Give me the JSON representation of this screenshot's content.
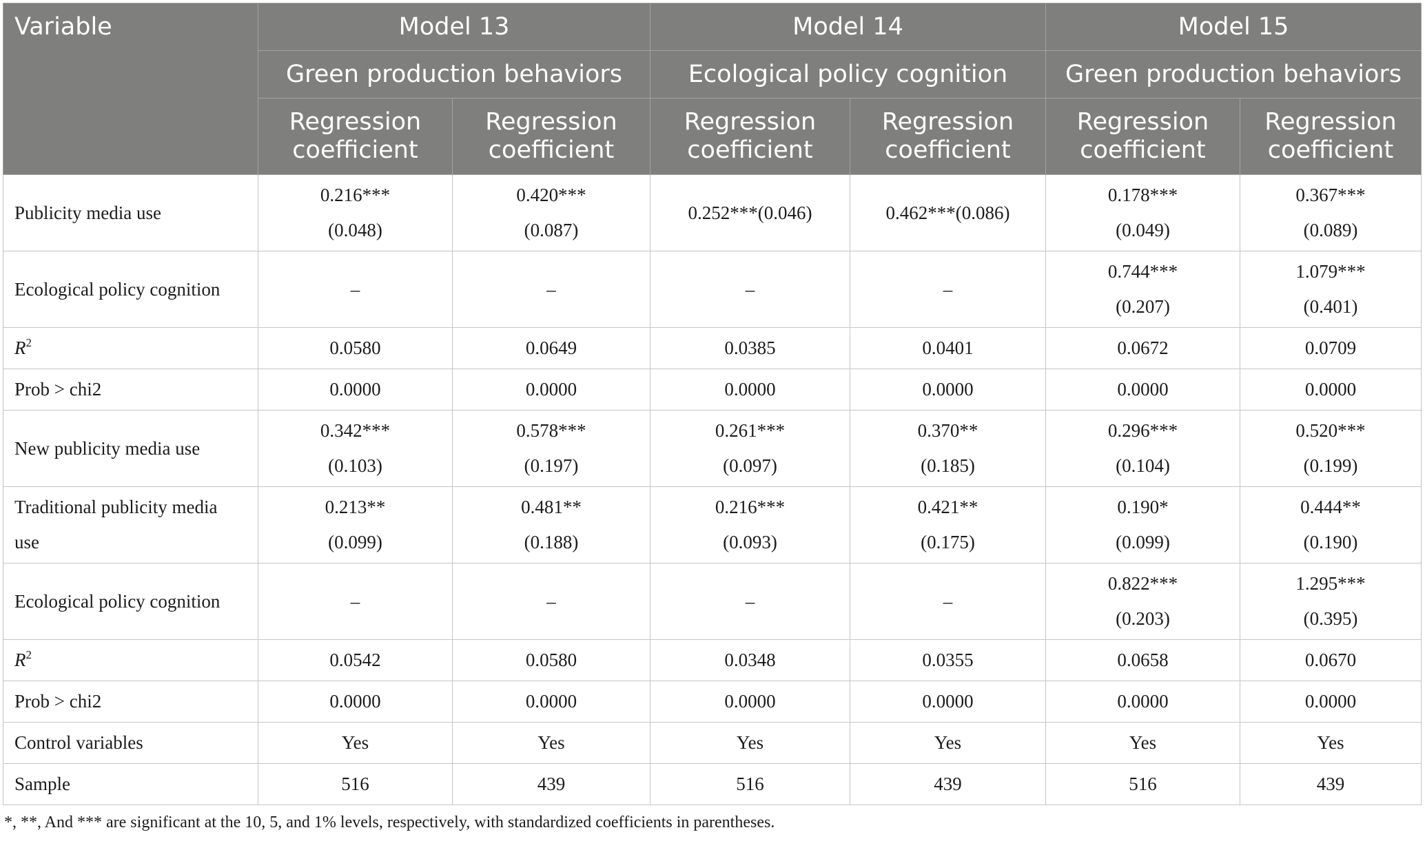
{
  "header": {
    "variable": "Variable",
    "models": [
      {
        "name": "Model 13",
        "dependent": "Green production behaviors"
      },
      {
        "name": "Model 14",
        "dependent": "Ecological policy cognition"
      },
      {
        "name": "Model 15",
        "dependent": "Green production behaviors"
      }
    ],
    "subcol_line1": "Regression",
    "subcol_line2": "coefficient"
  },
  "rows": [
    {
      "label": "Publicity media use",
      "cells": [
        [
          "0.216***",
          "(0.048)"
        ],
        [
          "0.420***",
          "(0.087)"
        ],
        [
          "0.252***(0.046)"
        ],
        [
          "0.462***(0.086)"
        ],
        [
          "0.178***",
          "(0.049)"
        ],
        [
          "0.367***",
          "(0.089)"
        ]
      ]
    },
    {
      "label": "Ecological policy cognition",
      "cells": [
        [
          "–"
        ],
        [
          "–"
        ],
        [
          "–"
        ],
        [
          "–"
        ],
        [
          "0.744***",
          "(0.207)"
        ],
        [
          "1.079***",
          "(0.401)"
        ]
      ]
    },
    {
      "label": "R",
      "label_sup": "2",
      "cells": [
        [
          "0.0580"
        ],
        [
          "0.0649"
        ],
        [
          "0.0385"
        ],
        [
          "0.0401"
        ],
        [
          "0.0672"
        ],
        [
          "0.0709"
        ]
      ]
    },
    {
      "label": "Prob > chi2",
      "cells": [
        [
          "0.0000"
        ],
        [
          "0.0000"
        ],
        [
          "0.0000"
        ],
        [
          "0.0000"
        ],
        [
          "0.0000"
        ],
        [
          "0.0000"
        ]
      ]
    },
    {
      "label": "New publicity media use",
      "cells": [
        [
          "0.342***",
          "(0.103)"
        ],
        [
          "0.578***",
          "(0.197)"
        ],
        [
          "0.261***",
          "(0.097)"
        ],
        [
          "0.370**",
          "(0.185)"
        ],
        [
          "0.296***",
          "(0.104)"
        ],
        [
          "0.520***",
          "(0.199)"
        ]
      ]
    },
    {
      "label_lines": [
        "Traditional publicity media",
        "use"
      ],
      "cells": [
        [
          "0.213**",
          "(0.099)"
        ],
        [
          "0.481**",
          "(0.188)"
        ],
        [
          "0.216***",
          "(0.093)"
        ],
        [
          "0.421**",
          "(0.175)"
        ],
        [
          "0.190*",
          "(0.099)"
        ],
        [
          "0.444**",
          "(0.190)"
        ]
      ]
    },
    {
      "label": "Ecological policy cognition",
      "cells": [
        [
          "–"
        ],
        [
          "–"
        ],
        [
          "–"
        ],
        [
          "–"
        ],
        [
          "0.822***",
          "(0.203)"
        ],
        [
          "1.295***",
          "(0.395)"
        ]
      ]
    },
    {
      "label": "R",
      "label_sup": "2",
      "cells": [
        [
          "0.0542"
        ],
        [
          "0.0580"
        ],
        [
          "0.0348"
        ],
        [
          "0.0355"
        ],
        [
          "0.0658"
        ],
        [
          "0.0670"
        ]
      ]
    },
    {
      "label": "Prob > chi2",
      "cells": [
        [
          "0.0000"
        ],
        [
          "0.0000"
        ],
        [
          "0.0000"
        ],
        [
          "0.0000"
        ],
        [
          "0.0000"
        ],
        [
          "0.0000"
        ]
      ]
    },
    {
      "label": "Control variables",
      "cells": [
        [
          "Yes"
        ],
        [
          "Yes"
        ],
        [
          "Yes"
        ],
        [
          "Yes"
        ],
        [
          "Yes"
        ],
        [
          "Yes"
        ]
      ]
    },
    {
      "label": "Sample",
      "cells": [
        [
          "516"
        ],
        [
          "439"
        ],
        [
          "516"
        ],
        [
          "439"
        ],
        [
          "516"
        ],
        [
          "439"
        ]
      ]
    }
  ],
  "footnote": "*, **, And *** are significant at the 10, 5, and 1% levels, respectively, with standardized coefficients in parentheses.",
  "colors": {
    "header_bg": "#7f7f7d",
    "header_text": "#ffffff",
    "grid": "#c4c4c4"
  }
}
